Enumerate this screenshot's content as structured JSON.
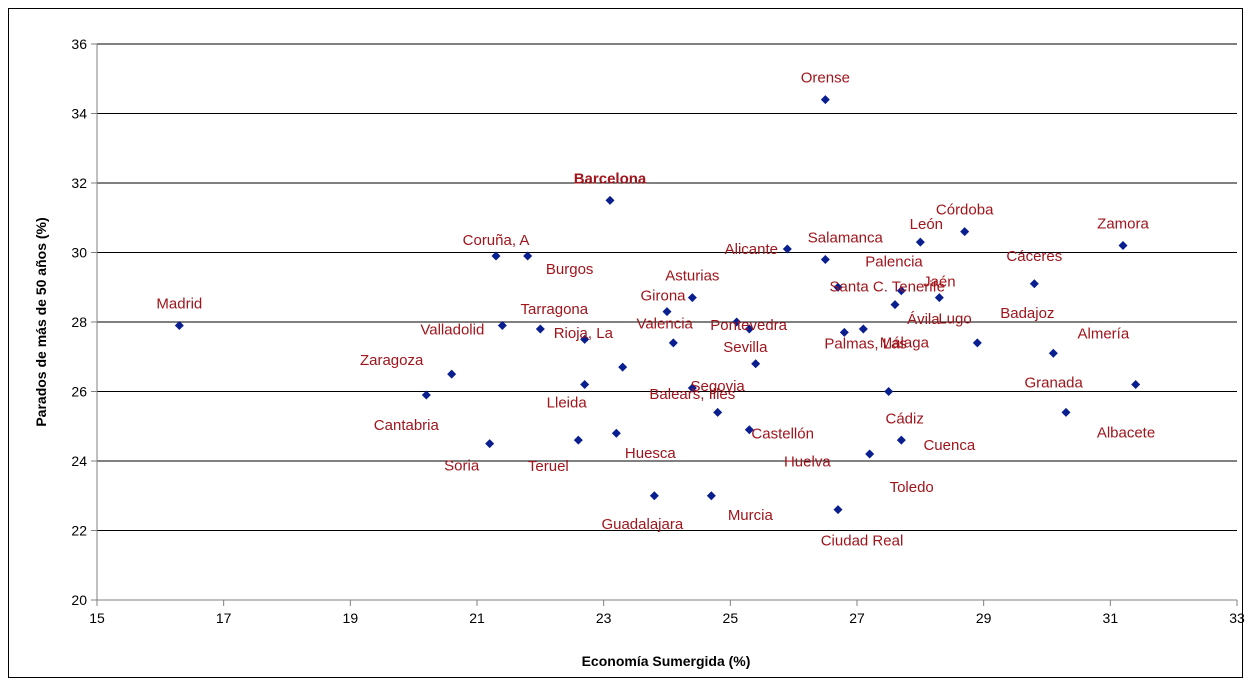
{
  "chart_data": {
    "type": "scatter",
    "title": "",
    "xlabel": "Economía Sumergida (%)",
    "ylabel": "Parados de más de 50 años (%)",
    "xlim": [
      15,
      33
    ],
    "ylim": [
      20,
      36
    ],
    "xticks": [
      15,
      17,
      19,
      21,
      23,
      25,
      27,
      29,
      31,
      33
    ],
    "yticks": [
      20,
      22,
      24,
      26,
      28,
      30,
      32,
      34,
      36
    ],
    "grid": "horizontal",
    "legend": "none",
    "marker_color": "#0a1f8f",
    "label_color": "#a0151c",
    "points": [
      {
        "name": "Orense",
        "x": 26.5,
        "y": 34.4
      },
      {
        "name": "Barcelona",
        "x": 23.1,
        "y": 31.5,
        "bold": true
      },
      {
        "name": "Córdoba",
        "x": 28.7,
        "y": 30.6
      },
      {
        "name": "Zamora",
        "x": 31.2,
        "y": 30.2
      },
      {
        "name": "León",
        "x": 28.0,
        "y": 30.3
      },
      {
        "name": "Salamanca",
        "x": 26.5,
        "y": 29.8
      },
      {
        "name": "Alicante",
        "x": 25.9,
        "y": 30.1
      },
      {
        "name": "Coruña, A",
        "x": 21.3,
        "y": 29.9
      },
      {
        "name": "Burgos",
        "x": 21.8,
        "y": 29.9
      },
      {
        "name": "Palencia",
        "x": 26.7,
        "y": 29.0
      },
      {
        "name": "Cáceres",
        "x": 29.8,
        "y": 29.1
      },
      {
        "name": "Jaén",
        "x": 28.3,
        "y": 28.7
      },
      {
        "name": "Lugo",
        "x": 27.6,
        "y": 28.5
      },
      {
        "name": "Santa C. Tenerife",
        "x": 27.7,
        "y": 28.9
      },
      {
        "name": "Asturias",
        "x": 24.4,
        "y": 28.7
      },
      {
        "name": "Girona",
        "x": 24.0,
        "y": 28.3
      },
      {
        "name": "Pontevedra",
        "x": 25.1,
        "y": 28.0
      },
      {
        "name": "Madrid",
        "x": 16.3,
        "y": 27.9
      },
      {
        "name": "Tarragona",
        "x": 22.0,
        "y": 27.8
      },
      {
        "name": "Valladolid",
        "x": 21.4,
        "y": 27.9
      },
      {
        "name": "Valencia",
        "x": 22.7,
        "y": 27.5
      },
      {
        "name": "Sevilla",
        "x": 25.3,
        "y": 27.8
      },
      {
        "name": "Ávila",
        "x": 27.1,
        "y": 27.8
      },
      {
        "name": "Málaga",
        "x": 26.8,
        "y": 27.7
      },
      {
        "name": "Rioja, La",
        "x": 24.1,
        "y": 27.4
      },
      {
        "name": "Badajoz",
        "x": 28.9,
        "y": 27.4
      },
      {
        "name": "Palmas, Las",
        "x": 25.4,
        "y": 26.8
      },
      {
        "name": "Zaragoza",
        "x": 20.6,
        "y": 26.5
      },
      {
        "name": "Almería",
        "x": 30.1,
        "y": 27.1
      },
      {
        "name": "Segovia",
        "x": 23.3,
        "y": 26.7
      },
      {
        "name": "Granada",
        "x": 31.4,
        "y": 26.2
      },
      {
        "name": "Lleida",
        "x": 22.7,
        "y": 26.2
      },
      {
        "name": "Balears, Illes",
        "x": 24.4,
        "y": 26.1
      },
      {
        "name": "Cantabria",
        "x": 20.2,
        "y": 25.9
      },
      {
        "name": "Cádiz",
        "x": 27.5,
        "y": 26.0
      },
      {
        "name": "Albacete",
        "x": 30.3,
        "y": 25.4
      },
      {
        "name": "Castellón",
        "x": 24.8,
        "y": 25.4
      },
      {
        "name": "Huelva",
        "x": 25.3,
        "y": 24.9
      },
      {
        "name": "Huesca",
        "x": 23.2,
        "y": 24.8
      },
      {
        "name": "Cuenca",
        "x": 27.7,
        "y": 24.6
      },
      {
        "name": "Teruel",
        "x": 22.6,
        "y": 24.6
      },
      {
        "name": "Soria",
        "x": 21.2,
        "y": 24.5
      },
      {
        "name": "Toledo",
        "x": 27.2,
        "y": 24.2
      },
      {
        "name": "Guadalajara",
        "x": 23.8,
        "y": 23.0
      },
      {
        "name": "Murcia",
        "x": 24.7,
        "y": 23.0
      },
      {
        "name": "Ciudad Real",
        "x": 26.7,
        "y": 22.6
      }
    ]
  }
}
